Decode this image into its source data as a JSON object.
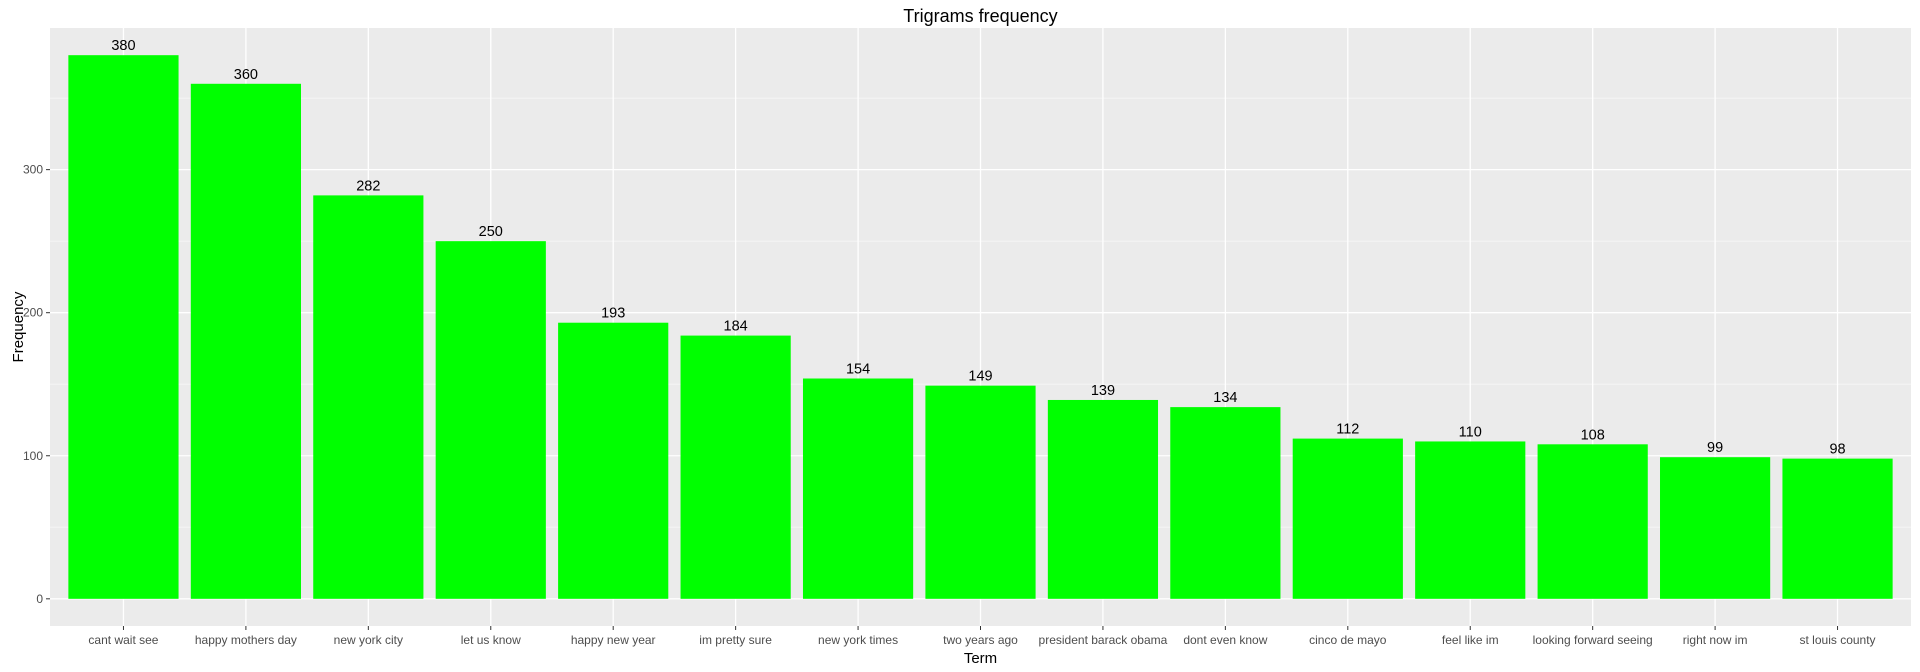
{
  "chart_data": {
    "type": "bar",
    "title": "Trigrams frequency",
    "xlabel": "Term",
    "ylabel": "Frequency",
    "categories": [
      "cant wait see",
      "happy mothers day",
      "new york city",
      "let us know",
      "happy new year",
      "im pretty sure",
      "new york times",
      "two years ago",
      "president barack obama",
      "dont even know",
      "cinco de mayo",
      "feel like im",
      "looking forward seeing",
      "right now im",
      "st louis county"
    ],
    "values": [
      380,
      360,
      282,
      250,
      193,
      184,
      154,
      149,
      139,
      134,
      112,
      110,
      108,
      99,
      98
    ],
    "ylim": [
      -19,
      399
    ],
    "yticks": [
      0,
      100,
      200,
      300
    ],
    "grid": true,
    "legend": "none",
    "colors": {
      "bar": "#00ff00",
      "panel_background": "#ebebeb",
      "grid_major": "#ffffff",
      "grid_minor": "#f5f5f5"
    }
  }
}
